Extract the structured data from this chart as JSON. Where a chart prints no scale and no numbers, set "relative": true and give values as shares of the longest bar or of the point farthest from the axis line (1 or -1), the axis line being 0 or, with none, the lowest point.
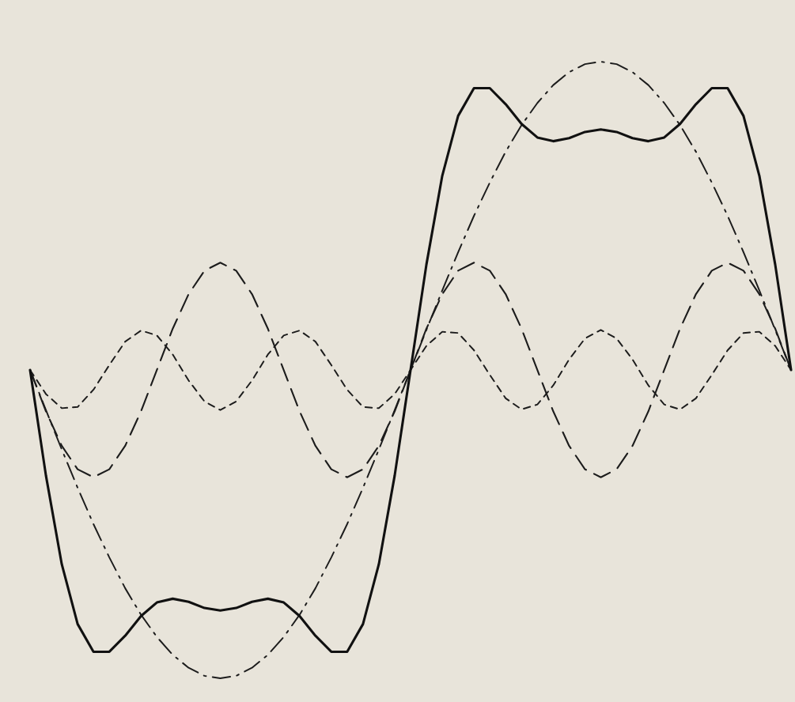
{
  "chart_data": {
    "type": "line",
    "relative": true,
    "categories": [
      null,
      null,
      null,
      null,
      null,
      null,
      null,
      null,
      null,
      null,
      null,
      null,
      null,
      null,
      null,
      null,
      null,
      null,
      null,
      null,
      null,
      null,
      null,
      null,
      null,
      null,
      null,
      null,
      null,
      null,
      null,
      null,
      null,
      null,
      null,
      null,
      null,
      null,
      null,
      null,
      null,
      null,
      null,
      null,
      null,
      null,
      null,
      null,
      null
    ],
    "series": [
      {
        "color": "#1c1c1c",
        "line_style": "dashdot",
        "values": [
          0.5,
          0.435,
          0.371,
          0.309,
          0.25,
          0.196,
          0.146,
          0.103,
          0.067,
          0.038,
          0.017,
          0.004,
          0,
          0.004,
          0.017,
          0.038,
          0.067,
          0.103,
          0.146,
          0.196,
          0.25,
          0.309,
          0.371,
          0.435,
          0.5,
          0.565,
          0.629,
          0.691,
          0.75,
          0.804,
          0.854,
          0.897,
          0.933,
          0.962,
          0.983,
          0.996,
          1,
          0.996,
          0.983,
          0.962,
          0.933,
          0.897,
          0.854,
          0.804,
          0.75,
          0.691,
          0.629,
          0.565,
          0.5
        ]
      },
      {
        "color": "#1c1c1c",
        "line_style": "dashed",
        "values": [
          0.5,
          0.433,
          0.377,
          0.339,
          0.326,
          0.339,
          0.377,
          0.433,
          0.5,
          0.567,
          0.623,
          0.661,
          0.674,
          0.661,
          0.623,
          0.567,
          0.5,
          0.433,
          0.377,
          0.339,
          0.326,
          0.339,
          0.377,
          0.433,
          0.5,
          0.567,
          0.623,
          0.661,
          0.674,
          0.661,
          0.623,
          0.567,
          0.5,
          0.433,
          0.377,
          0.339,
          0.326,
          0.339,
          0.377,
          0.433,
          0.5,
          0.567,
          0.623,
          0.661,
          0.674,
          0.661,
          0.623,
          0.567,
          0.5
        ]
      },
      {
        "color": "#1c1c1c",
        "line_style": "dotted",
        "values": [
          0.5,
          0.461,
          0.438,
          0.44,
          0.468,
          0.508,
          0.546,
          0.564,
          0.556,
          0.525,
          0.483,
          0.449,
          0.435,
          0.449,
          0.483,
          0.525,
          0.556,
          0.564,
          0.546,
          0.508,
          0.468,
          0.44,
          0.438,
          0.461,
          0.5,
          0.539,
          0.562,
          0.56,
          0.532,
          0.492,
          0.454,
          0.436,
          0.444,
          0.475,
          0.517,
          0.551,
          0.565,
          0.551,
          0.517,
          0.475,
          0.444,
          0.436,
          0.454,
          0.492,
          0.532,
          0.56,
          0.562,
          0.539,
          0.5
        ]
      },
      {
        "color": "#111111",
        "line_style": "solid",
        "values": [
          0.5,
          0.329,
          0.185,
          0.088,
          0.043,
          0.043,
          0.069,
          0.101,
          0.123,
          0.129,
          0.124,
          0.114,
          0.11,
          0.114,
          0.124,
          0.129,
          0.123,
          0.101,
          0.069,
          0.043,
          0.043,
          0.088,
          0.185,
          0.329,
          0.5,
          0.671,
          0.815,
          0.912,
          0.957,
          0.957,
          0.931,
          0.899,
          0.877,
          0.871,
          0.876,
          0.886,
          0.89,
          0.886,
          0.876,
          0.871,
          0.877,
          0.899,
          0.931,
          0.957,
          0.957,
          0.912,
          0.815,
          0.671,
          0.5
        ]
      }
    ]
  }
}
